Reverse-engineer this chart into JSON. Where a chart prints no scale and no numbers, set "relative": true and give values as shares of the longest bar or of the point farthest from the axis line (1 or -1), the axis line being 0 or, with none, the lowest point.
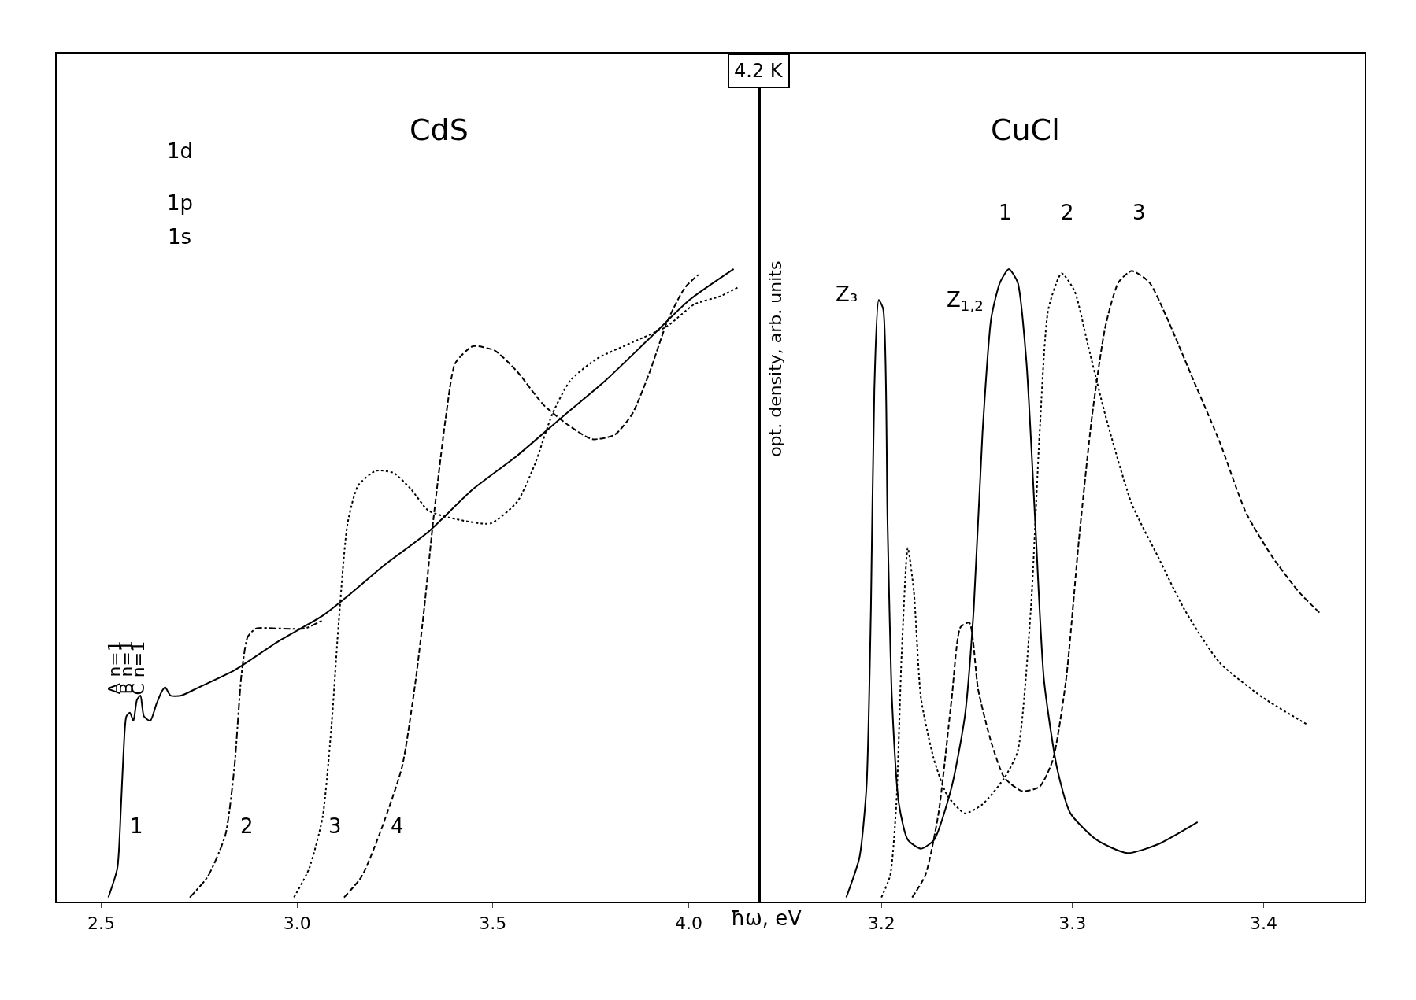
{
  "chart_data": [
    {
      "type": "line",
      "title": "CdS",
      "xlabel": "ħω, eV",
      "relative": true,
      "grid": false,
      "marker": "none",
      "xlim": [
        2.387,
        4.18
      ],
      "xticks": [
        {
          "value": 2.5,
          "label": "2.5"
        },
        {
          "value": 3.0,
          "label": "3.0"
        },
        {
          "value": 3.5,
          "label": "3.5"
        },
        {
          "value": 4.0,
          "label": "4.0"
        }
      ],
      "series": [
        {
          "color": "#000000",
          "line_style": "solid",
          "x": [
            2.518,
            2.541,
            2.55,
            2.557,
            2.564,
            2.573,
            2.582,
            2.591,
            2.6,
            2.609,
            2.625,
            2.641,
            2.654,
            2.663,
            2.677,
            2.704,
            2.749,
            2.84,
            2.953,
            3.065,
            3.133,
            3.223,
            3.336,
            3.449,
            3.562,
            3.675,
            3.788,
            3.901,
            4.002,
            4.115
          ],
          "values": [
            0.007,
            0.053,
            0.146,
            0.239,
            0.293,
            0.299,
            0.286,
            0.319,
            0.326,
            0.293,
            0.286,
            0.313,
            0.332,
            0.339,
            0.326,
            0.326,
            0.339,
            0.366,
            0.412,
            0.452,
            0.485,
            0.532,
            0.585,
            0.652,
            0.705,
            0.765,
            0.824,
            0.891,
            0.951,
            1.0
          ]
        },
        {
          "color": "#000000",
          "line_style": "dashdot",
          "x": [
            2.726,
            2.772,
            2.817,
            2.84,
            2.858,
            2.874,
            2.896,
            2.953,
            3.02,
            3.065
          ],
          "values": [
            0.007,
            0.04,
            0.106,
            0.213,
            0.359,
            0.419,
            0.432,
            0.432,
            0.432,
            0.445
          ]
        },
        {
          "color": "#000000",
          "line_style": "dotted",
          "x": [
            2.992,
            3.031,
            3.065,
            3.088,
            3.106,
            3.129,
            3.156,
            3.201,
            3.246,
            3.291,
            3.336,
            3.404,
            3.494,
            3.562,
            3.607,
            3.652,
            3.698,
            3.765,
            3.856,
            3.946,
            4.014,
            4.081,
            4.126
          ],
          "values": [
            0.007,
            0.053,
            0.133,
            0.279,
            0.439,
            0.598,
            0.658,
            0.681,
            0.678,
            0.652,
            0.618,
            0.605,
            0.598,
            0.632,
            0.691,
            0.771,
            0.824,
            0.858,
            0.884,
            0.91,
            0.944,
            0.957,
            0.971
          ]
        },
        {
          "color": "#000000",
          "line_style": "dashed",
          "x": [
            3.12,
            3.165,
            3.21,
            3.268,
            3.302,
            3.325,
            3.347,
            3.381,
            3.404,
            3.449,
            3.505,
            3.562,
            3.63,
            3.698,
            3.754,
            3.811,
            3.856,
            3.901,
            3.946,
            3.991,
            4.025
          ],
          "values": [
            0.007,
            0.04,
            0.106,
            0.213,
            0.346,
            0.465,
            0.598,
            0.771,
            0.851,
            0.878,
            0.871,
            0.838,
            0.785,
            0.751,
            0.731,
            0.738,
            0.771,
            0.838,
            0.918,
            0.971,
            0.991
          ]
        }
      ],
      "annotations": [
        "4.2 K",
        "1",
        "2",
        "3",
        "4",
        "A n=1",
        "B n=1",
        "C n=1",
        "1d",
        "1p",
        "1s"
      ]
    },
    {
      "type": "line",
      "title": "CuCl",
      "ylabel": "opt. density, arb. units",
      "relative": true,
      "grid": false,
      "marker": "none",
      "xlim": [
        3.136,
        3.453
      ],
      "xticks": [
        {
          "value": 3.2,
          "label": "3.2"
        },
        {
          "value": 3.3,
          "label": "3.3"
        },
        {
          "value": 3.4,
          "label": "3.4"
        }
      ],
      "series": [
        {
          "color": "#000000",
          "line_style": "solid",
          "x": [
            3.1816,
            3.1885,
            3.1922,
            3.1945,
            3.1963,
            3.1986,
            3.2009,
            3.2032,
            3.2055,
            3.2092,
            3.2138,
            3.2207,
            3.2276,
            3.2368,
            3.2437,
            3.2483,
            3.2529,
            3.2575,
            3.2621,
            3.2667,
            3.2713,
            3.2759,
            3.2805,
            3.2851,
            3.292,
            3.2989,
            3.3126,
            3.3287,
            3.3448,
            3.3655
          ],
          "values": [
            0.007,
            0.07,
            0.182,
            0.462,
            0.811,
            0.951,
            0.937,
            0.601,
            0.322,
            0.154,
            0.098,
            0.084,
            0.098,
            0.182,
            0.294,
            0.462,
            0.741,
            0.923,
            0.979,
            1.0,
            0.979,
            0.853,
            0.601,
            0.35,
            0.21,
            0.14,
            0.098,
            0.077,
            0.091,
            0.126
          ]
        },
        {
          "color": "#000000",
          "line_style": "dotted",
          "x": [
            3.2,
            3.2046,
            3.2078,
            3.2106,
            3.2138,
            3.217,
            3.2207,
            3.2276,
            3.2345,
            3.2437,
            3.2529,
            3.2644,
            3.2713,
            3.2782,
            3.2828,
            3.2874,
            3.2943,
            3.3011,
            3.308,
            3.3172,
            3.331,
            3.3448,
            3.3586,
            3.377,
            3.4,
            3.423
          ],
          "values": [
            0.007,
            0.042,
            0.154,
            0.392,
            0.559,
            0.49,
            0.322,
            0.224,
            0.168,
            0.14,
            0.154,
            0.196,
            0.238,
            0.462,
            0.741,
            0.937,
            0.993,
            0.965,
            0.881,
            0.769,
            0.629,
            0.545,
            0.462,
            0.378,
            0.322,
            0.28
          ]
        },
        {
          "color": "#000000",
          "line_style": "dashed",
          "x": [
            3.2161,
            3.223,
            3.2299,
            3.2368,
            3.2414,
            3.246,
            3.2506,
            3.2575,
            3.2644,
            3.2736,
            3.2828,
            3.2897,
            3.2966,
            3.3034,
            3.3103,
            3.3172,
            3.3241,
            3.331,
            3.3402,
            3.3494,
            3.3632,
            3.377,
            3.3908,
            3.4046,
            3.4184,
            3.4299
          ],
          "values": [
            0.007,
            0.042,
            0.14,
            0.322,
            0.434,
            0.441,
            0.336,
            0.252,
            0.196,
            0.175,
            0.182,
            0.224,
            0.35,
            0.573,
            0.769,
            0.909,
            0.979,
            0.997,
            0.979,
            0.923,
            0.825,
            0.727,
            0.615,
            0.545,
            0.49,
            0.455
          ]
        }
      ],
      "annotations": [
        "Z₃",
        "Z$_{1,2}$",
        "1",
        "2",
        "3"
      ]
    }
  ]
}
